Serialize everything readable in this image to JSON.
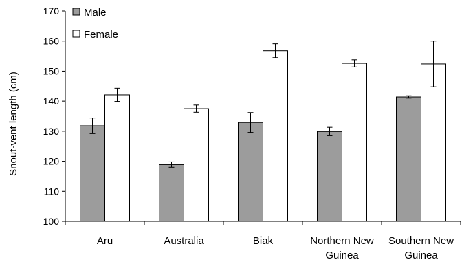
{
  "chart_data": {
    "type": "bar",
    "ylabel": "Snout-vent length (cm)",
    "xlabel": "",
    "ylim": [
      100,
      170
    ],
    "yticks": [
      100,
      110,
      120,
      130,
      140,
      150,
      160,
      170
    ],
    "grid": false,
    "legend_position": "top-left",
    "categories": [
      [
        "Aru"
      ],
      [
        "Australia"
      ],
      [
        "Biak"
      ],
      [
        "Northern New",
        "Guinea"
      ],
      [
        "Southern New",
        "Guinea"
      ]
    ],
    "series": [
      {
        "name": "Male",
        "color": "#9c9c9c",
        "values": [
          131.8,
          118.9,
          132.9,
          129.9,
          141.4
        ],
        "error": [
          2.6,
          0.9,
          3.3,
          1.4,
          0.4
        ]
      },
      {
        "name": "Female",
        "color": "#ffffff",
        "values": [
          142.1,
          137.5,
          156.8,
          152.6,
          152.4
        ],
        "error": [
          2.2,
          1.2,
          2.3,
          1.2,
          7.6
        ]
      }
    ]
  }
}
